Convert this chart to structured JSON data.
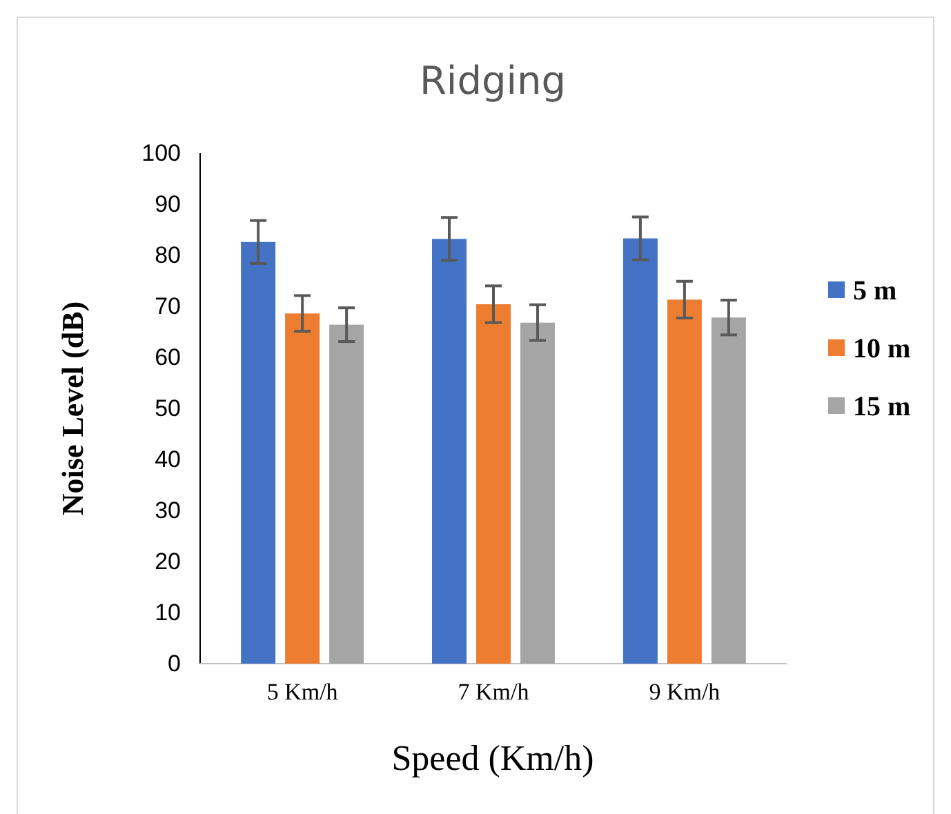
{
  "chart_data": {
    "type": "bar",
    "title": "Ridging",
    "xlabel": "Speed (Km/h)",
    "ylabel": "Noise Level (dB)",
    "categories": [
      "5 Km/h",
      "7 Km/h",
      "9 Km/h"
    ],
    "series": [
      {
        "name": "5 m",
        "color": "#4472c4",
        "values": [
          82.6,
          83.2,
          83.3
        ],
        "errors": [
          4.2,
          4.2,
          4.2
        ]
      },
      {
        "name": "10 m",
        "color": "#ed7d31",
        "values": [
          68.6,
          70.4,
          71.3
        ],
        "errors": [
          3.5,
          3.6,
          3.6
        ]
      },
      {
        "name": "15 m",
        "color": "#a5a5a5",
        "values": [
          66.4,
          66.8,
          67.8
        ],
        "errors": [
          3.3,
          3.5,
          3.4
        ]
      }
    ],
    "ylim": [
      0,
      100
    ],
    "yticks": [
      0,
      10,
      20,
      30,
      40,
      50,
      60,
      70,
      80,
      90,
      100
    ],
    "grid": false,
    "legend": "right"
  }
}
